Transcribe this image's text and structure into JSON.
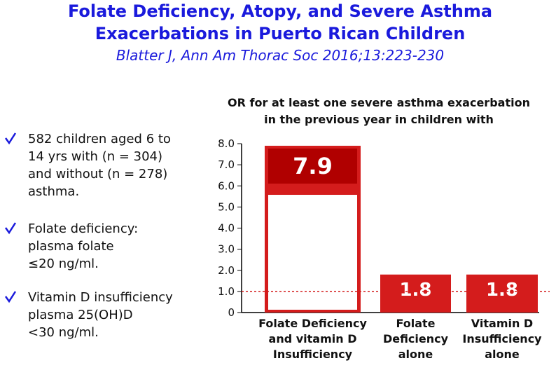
{
  "header": {
    "title": [
      "Folate Deficiency, Atopy, and Severe Asthma",
      "Exacerbations in Puerto Rican Children"
    ],
    "citation": "Blatter J,  Ann Am Thorac Soc 2016;13:223-230"
  },
  "bullets": [
    "582 children aged 6 to\n14 yrs with (n = 304)\nand without (n = 278)\nasthma.",
    "Folate deficiency:\nplasma folate\n≤20 ng/ml.",
    "Vitamin D insufficiency\nplasma 25(OH)D\n<30 ng/ml."
  ],
  "chart_data": {
    "type": "bar",
    "title": [
      "OR for at least one severe asthma exacerbation",
      "in the previous year in children with"
    ],
    "categories": [
      "Folate Deficiency\nand vitamin D\nInsufficiency",
      "Folate\nDeficiency\nalone",
      "Vitamin D\nInsufficiency\nalone"
    ],
    "values": [
      7.9,
      1.8,
      1.8
    ],
    "color": "#d41c1c",
    "ylim": [
      0,
      8
    ],
    "yticks": [
      0,
      {
        "value": 1,
        "label": "1.0"
      },
      {
        "value": 2,
        "label": "2.0"
      },
      {
        "value": 3,
        "label": "3.0"
      },
      {
        "value": 4,
        "label": "4.0"
      },
      {
        "value": 5,
        "label": "5.0"
      },
      {
        "value": 6,
        "label": "6.0"
      },
      {
        "value": 7,
        "label": "7.0"
      },
      {
        "value": 8,
        "label": "8.0"
      }
    ],
    "reference_line": 1
  }
}
